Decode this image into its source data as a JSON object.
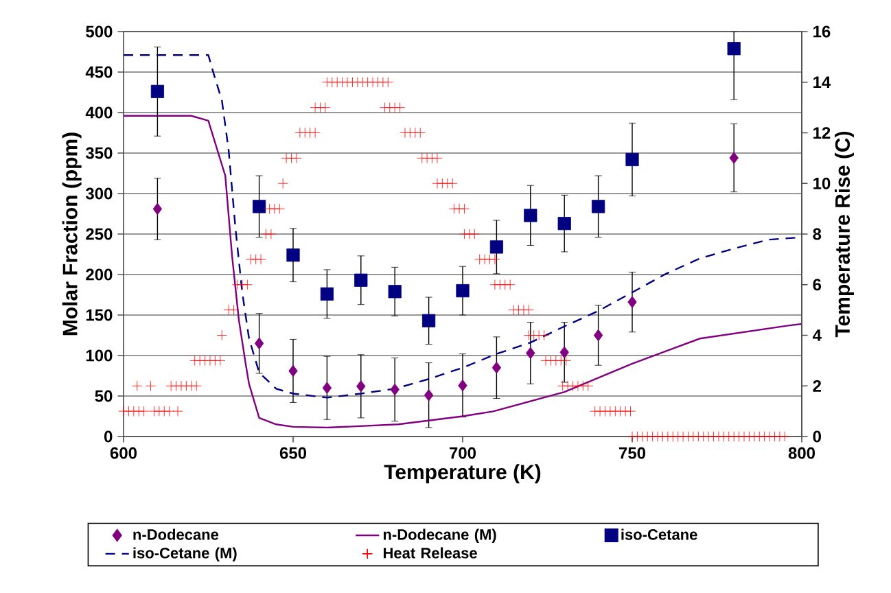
{
  "chart_data": {
    "type": "scatter",
    "xlabel": "Temperature (K)",
    "ylabel": "Molar Fraction (ppm)",
    "y2label": "Temperature Rise (C)",
    "xlim": [
      600,
      800
    ],
    "xticks": [
      600,
      650,
      700,
      750,
      800
    ],
    "ylim": [
      0,
      500
    ],
    "yticks": [
      0,
      50,
      100,
      150,
      200,
      250,
      300,
      350,
      400,
      450,
      500
    ],
    "y2lim": [
      0,
      16
    ],
    "y2ticks": [
      0,
      2,
      4,
      6,
      8,
      10,
      12,
      14,
      16
    ],
    "grid": "y",
    "legend": "bottom",
    "series": [
      {
        "name": "n-Dodecane",
        "marker": "diamond",
        "color": "#800080",
        "x": [
          610,
          640,
          650,
          660,
          670,
          680,
          690,
          700,
          710,
          720,
          730,
          740,
          750,
          780
        ],
        "values": [
          281,
          115,
          81,
          60,
          62,
          58,
          51,
          63,
          85,
          103,
          104,
          125,
          166,
          344
        ],
        "errors": [
          38,
          37,
          39,
          39,
          39,
          39,
          40,
          39,
          38,
          38,
          37,
          37,
          37,
          42
        ]
      },
      {
        "name": "n-Dodecane (M)",
        "type": "line",
        "marker": "none",
        "line_style": "solid",
        "color": "#800080",
        "x": [
          600,
          620,
          625,
          630,
          632,
          634,
          636,
          637,
          640,
          645,
          650,
          660,
          681,
          700,
          709,
          730,
          750,
          770,
          796,
          800
        ],
        "values": [
          396,
          396,
          390,
          322,
          223,
          144,
          90,
          65,
          23,
          15,
          12,
          11,
          15,
          25,
          31,
          55,
          90,
          121,
          137,
          139
        ]
      },
      {
        "name": "iso-Cetane",
        "marker": "square",
        "color": "#000080",
        "x": [
          610,
          640,
          650,
          660,
          670,
          680,
          690,
          700,
          710,
          720,
          730,
          740,
          750,
          780
        ],
        "values": [
          426,
          284,
          224,
          176,
          193,
          179,
          143,
          180,
          234,
          273,
          263,
          284,
          342,
          479
        ],
        "errors": [
          55,
          38,
          33,
          30,
          30,
          30,
          29,
          30,
          33,
          37,
          35,
          38,
          45,
          [
            416,
            500
          ]
        ]
      },
      {
        "name": "iso-Cetane (M)",
        "type": "line",
        "marker": "none",
        "line_style": "dashed",
        "color": "#000080",
        "x": [
          600,
          625,
          626.5,
          629,
          631,
          633,
          635,
          637,
          640,
          645,
          650,
          660,
          670,
          680,
          690,
          700,
          710,
          720,
          730,
          740,
          750,
          760,
          770,
          780,
          790,
          800
        ],
        "values": [
          471,
          471,
          449,
          415,
          353,
          257,
          178,
          121,
          79,
          59,
          53,
          48,
          53,
          59,
          71,
          85,
          102,
          116,
          136,
          155,
          178,
          201,
          220,
          232,
          243,
          246
        ]
      },
      {
        "name": "Heat Release",
        "marker": "cross",
        "color": "#ff0000",
        "axis": "y2",
        "x": [
          600,
          601.5,
          603,
          604.5,
          606,
          609,
          610.5,
          612,
          613.5,
          616,
          604,
          608,
          614,
          615.5,
          617,
          618.5,
          620,
          621.5,
          621,
          622.5,
          624,
          625.5,
          627,
          628.5,
          629,
          631,
          632.5,
          633.5,
          635,
          636.5,
          637.5,
          639,
          640.5,
          642,
          643.5,
          643,
          644.5,
          646,
          647,
          648,
          649.5,
          651,
          652,
          653.5,
          655,
          656.5,
          656.5,
          658,
          659.5,
          660,
          661.5,
          663,
          664.5,
          666,
          667.5,
          669,
          670.5,
          672,
          673.5,
          675,
          676.5,
          678,
          677,
          678.5,
          680,
          681.5,
          683,
          684.5,
          686,
          687.5,
          688,
          689.5,
          691,
          692.5,
          692.5,
          694,
          695.5,
          697,
          697.5,
          699,
          700.5,
          700.5,
          702,
          703.5,
          705,
          706.5,
          708,
          709.5,
          709.5,
          711,
          712.5,
          714,
          715,
          716.5,
          718,
          719.5,
          719.5,
          721,
          722.5,
          724,
          724.5,
          726,
          727.5,
          729,
          730.5,
          729.5,
          731,
          732.5,
          734,
          735.5,
          737,
          739,
          740.5,
          742,
          743.5,
          745,
          746.5,
          748,
          749.5,
          750,
          751.5,
          753,
          754.5,
          756,
          757.5,
          759,
          760.5,
          762,
          763.5,
          765,
          766.5,
          768,
          769.5,
          771,
          772.5,
          774,
          775.5,
          777,
          778.5,
          780,
          781.5,
          783,
          784.5,
          786,
          787.5,
          789,
          790.5,
          792,
          793.5,
          795
        ],
        "values": [
          1,
          1,
          1,
          1,
          1,
          1,
          1,
          1,
          1,
          1,
          2,
          2,
          2,
          2,
          2,
          2,
          2,
          2,
          3,
          3,
          3,
          3,
          3,
          3,
          4,
          5,
          5,
          6,
          6,
          6,
          7,
          7,
          7,
          8,
          8,
          9,
          9,
          9,
          10,
          11,
          11,
          11,
          12,
          12,
          12,
          12,
          13,
          13,
          13,
          14,
          14,
          14,
          14,
          14,
          14,
          14,
          14,
          14,
          14,
          14,
          14,
          14,
          13,
          13,
          13,
          13,
          12,
          12,
          12,
          12,
          11,
          11,
          11,
          11,
          10,
          10,
          10,
          10,
          9,
          9,
          9,
          8,
          8,
          8,
          7,
          7,
          7,
          7,
          6,
          6,
          6,
          6,
          5,
          5,
          5,
          5,
          4,
          4,
          4,
          4,
          3,
          3,
          3,
          3,
          3,
          2,
          2,
          2,
          2,
          2,
          2,
          1,
          1,
          1,
          1,
          1,
          1,
          1,
          1,
          0,
          0,
          0,
          0,
          0,
          0,
          0,
          0,
          0,
          0,
          0,
          0,
          0,
          0,
          0,
          0,
          0,
          0,
          0,
          0,
          0,
          0,
          0,
          0,
          0,
          0,
          0,
          0,
          0,
          0,
          0
        ]
      }
    ]
  }
}
